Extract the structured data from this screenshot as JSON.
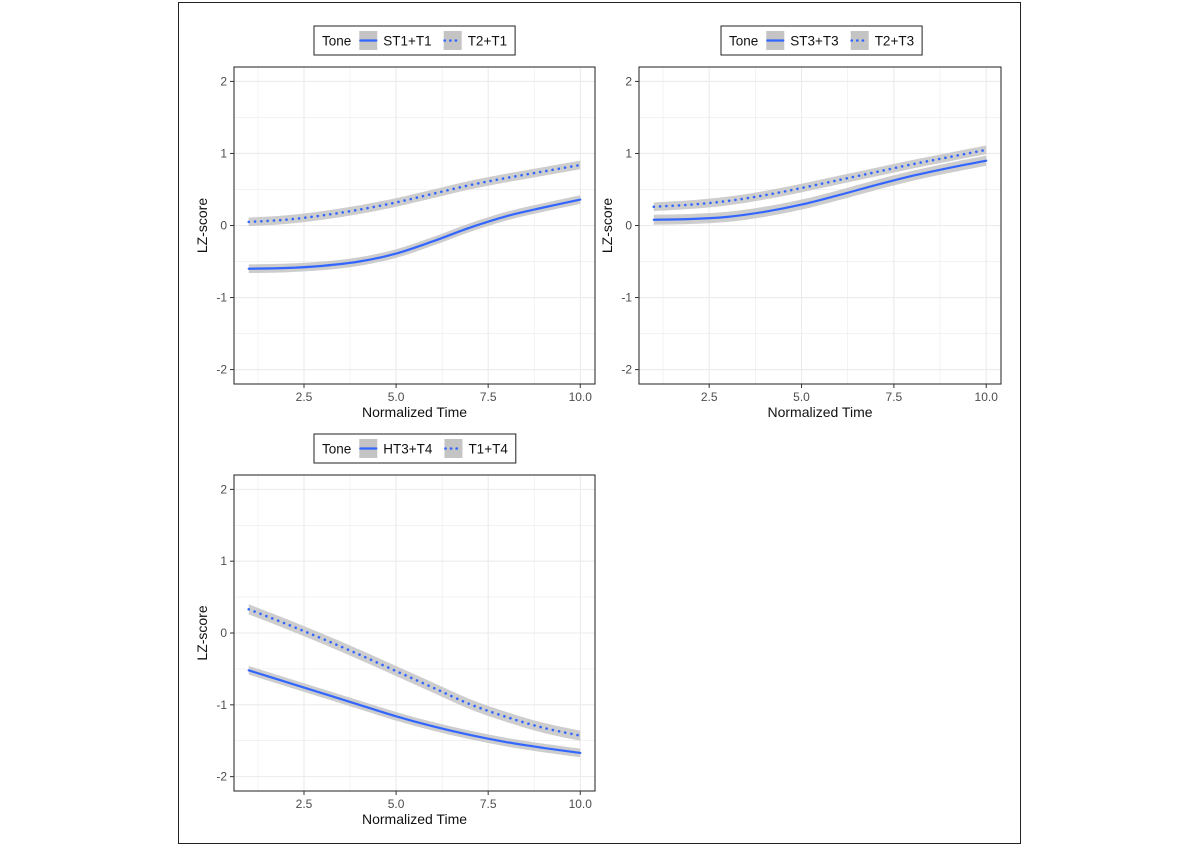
{
  "chart_data": [
    {
      "type": "line",
      "legend": {
        "title": "Tone",
        "position": "top"
      },
      "xlabel": "Normalized Time",
      "ylabel": "LZ-score",
      "xlim": [
        0.6,
        10.4
      ],
      "ylim": [
        -2.2,
        2.2
      ],
      "xticks": [
        2.5,
        5.0,
        7.5,
        10.0
      ],
      "xtick_labels": [
        "2.5",
        "5.0",
        "7.5",
        "10.0"
      ],
      "yticks": [
        -2,
        -1,
        0,
        1,
        2
      ],
      "ytick_labels": [
        "-2",
        "-1",
        "0",
        "1",
        "2"
      ],
      "grid": true,
      "series": [
        {
          "name": "ST1+T1",
          "style": "solid",
          "x": [
            1,
            2,
            3,
            4,
            5,
            6,
            7,
            8,
            9,
            10
          ],
          "y": [
            -0.6,
            -0.59,
            -0.56,
            -0.5,
            -0.39,
            -0.22,
            -0.03,
            0.13,
            0.25,
            0.36
          ],
          "ci_halfwidth": 0.06
        },
        {
          "name": "T2+T1",
          "style": "dotted",
          "x": [
            1,
            2,
            3,
            4,
            5,
            6,
            7,
            8,
            9,
            10
          ],
          "y": [
            0.05,
            0.08,
            0.14,
            0.22,
            0.32,
            0.44,
            0.56,
            0.66,
            0.75,
            0.84
          ],
          "ci_halfwidth": 0.06
        }
      ]
    },
    {
      "type": "line",
      "legend": {
        "title": "Tone",
        "position": "top"
      },
      "xlabel": "Normalized Time",
      "ylabel": "LZ-score",
      "xlim": [
        0.6,
        10.4
      ],
      "ylim": [
        -2.2,
        2.2
      ],
      "xticks": [
        2.5,
        5.0,
        7.5,
        10.0
      ],
      "xtick_labels": [
        "2.5",
        "5.0",
        "7.5",
        "10.0"
      ],
      "yticks": [
        -2,
        -1,
        0,
        1,
        2
      ],
      "ytick_labels": [
        "-2",
        "-1",
        "0",
        "1",
        "2"
      ],
      "grid": true,
      "series": [
        {
          "name": "ST3+T3",
          "style": "solid",
          "x": [
            1,
            2,
            3,
            4,
            5,
            6,
            7,
            8,
            9,
            10
          ],
          "y": [
            0.08,
            0.09,
            0.12,
            0.19,
            0.29,
            0.42,
            0.56,
            0.69,
            0.8,
            0.9
          ],
          "ci_halfwidth": 0.07
        },
        {
          "name": "T2+T3",
          "style": "dotted",
          "x": [
            1,
            2,
            3,
            4,
            5,
            6,
            7,
            8,
            9,
            10
          ],
          "y": [
            0.26,
            0.29,
            0.34,
            0.42,
            0.52,
            0.63,
            0.74,
            0.85,
            0.95,
            1.05
          ],
          "ci_halfwidth": 0.06
        }
      ]
    },
    {
      "type": "line",
      "legend": {
        "title": "Tone",
        "position": "top"
      },
      "xlabel": "Normalized Time",
      "ylabel": "LZ-score",
      "xlim": [
        0.6,
        10.4
      ],
      "ylim": [
        -2.2,
        2.2
      ],
      "xticks": [
        2.5,
        5.0,
        7.5,
        10.0
      ],
      "xtick_labels": [
        "2.5",
        "5.0",
        "7.5",
        "10.0"
      ],
      "yticks": [
        -2,
        -1,
        0,
        1,
        2
      ],
      "ytick_labels": [
        "-2",
        "-1",
        "0",
        "1",
        "2"
      ],
      "grid": true,
      "series": [
        {
          "name": "HT3+T4",
          "style": "solid",
          "x": [
            1,
            2,
            3,
            4,
            5,
            6,
            7,
            8,
            9,
            10
          ],
          "y": [
            -0.52,
            -0.68,
            -0.84,
            -1.0,
            -1.16,
            -1.3,
            -1.42,
            -1.52,
            -1.6,
            -1.67
          ],
          "ci_halfwidth": 0.06
        },
        {
          "name": "T1+T4",
          "style": "dotted",
          "x": [
            1,
            2,
            3,
            4,
            5,
            6,
            7,
            8,
            9,
            10
          ],
          "y": [
            0.33,
            0.13,
            -0.08,
            -0.3,
            -0.53,
            -0.76,
            -0.99,
            -1.17,
            -1.32,
            -1.43
          ],
          "ci_halfwidth": 0.07
        }
      ]
    }
  ],
  "colors": {
    "line": "#3366ff",
    "ribbon": "#c4c4c4",
    "grid": "#ebebeb",
    "panel_border": "#333333"
  }
}
